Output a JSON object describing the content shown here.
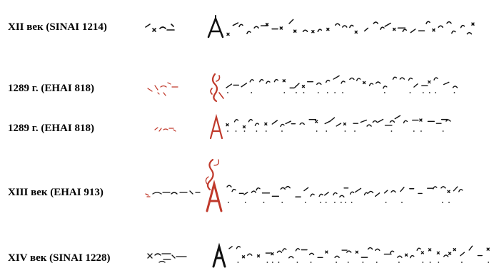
{
  "rows": [
    {
      "label": "XII век (SINAI 1214)"
    },
    {
      "label": "1289 г. (ЕНАI 818)"
    },
    {
      "label": "1289 г. (ЕНАI 818)"
    },
    {
      "label": "XIII век (ЕНАI 913)"
    },
    {
      "label": "XIV век (SINAI 1228)"
    }
  ],
  "colors": {
    "ink_black": "#111111",
    "ink_red": "#c0392b",
    "background": "#ffffff"
  }
}
